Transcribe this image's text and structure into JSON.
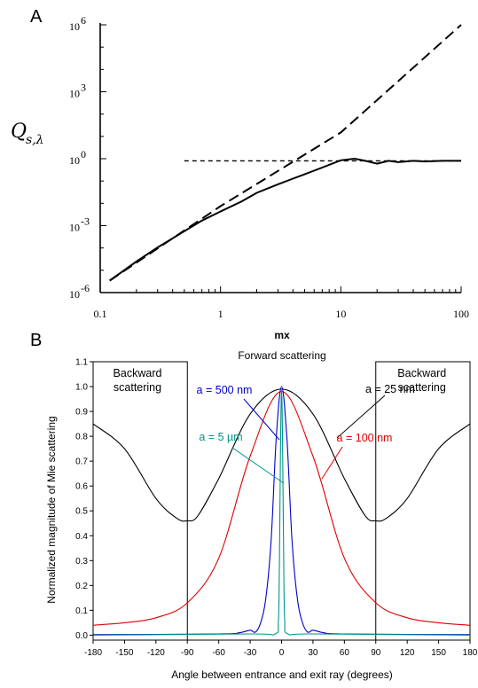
{
  "chart_data": [
    {
      "type": "line",
      "panel_label": "A",
      "ylabel_symbol": "Q",
      "ylabel_subscript": "s,λ",
      "xlabel": "mx",
      "xscale": "log",
      "yscale": "log",
      "xlim": [
        0.1,
        100
      ],
      "ylim": [
        1e-06,
        1000000.0
      ],
      "xtick_labels": [
        "0.1",
        "1",
        "10",
        "100"
      ],
      "ytick_labels": [
        {
          "base": "10",
          "exp": "6"
        },
        {
          "base": "10",
          "exp": "3"
        },
        {
          "base": "10",
          "exp": "0"
        },
        {
          "base": "10",
          "exp": "-3"
        },
        {
          "base": "10",
          "exp": "-6"
        }
      ],
      "series": [
        {
          "style": "solid",
          "color": "#000000",
          "x": [
            0.12,
            0.2,
            0.3,
            0.5,
            0.7,
            1.0,
            1.5,
            2.0,
            3.0,
            4.0,
            5.0,
            7.0,
            10.0,
            13.0,
            16.0,
            20.0,
            25.0,
            30.0,
            40.0,
            50.0,
            70.0,
            100.0
          ],
          "y": [
            3.45e-06,
            2.45e-05,
            0.000105,
            0.000564,
            0.00169,
            0.00433,
            0.0123,
            0.0294,
            0.071,
            0.128,
            0.2,
            0.4,
            0.85,
            1.0,
            0.8,
            0.6,
            0.8,
            0.7,
            0.8,
            0.75,
            0.8,
            0.8
          ]
        },
        {
          "style": "dashed",
          "color": "#000000",
          "x": [
            0.12,
            1.0,
            10.0,
            100.0
          ],
          "y": [
            3.45e-06,
            0.0075,
            15.0,
            1000000.0
          ]
        },
        {
          "style": "dotted",
          "color": "#000000",
          "x": [
            0.5,
            100.0
          ],
          "y": [
            0.8,
            0.8
          ]
        }
      ]
    },
    {
      "type": "line",
      "panel_label": "B",
      "title": "Forward scattering",
      "xlabel": "Angle between entrance and exit ray (degrees)",
      "ylabel": "Normalized magnitude of Mie scattering",
      "xlim": [
        -180,
        180
      ],
      "ylim": [
        -0.02,
        1.1
      ],
      "xtick_labels": [
        "-180",
        "-150",
        "-120",
        "-90",
        "-60",
        "-30",
        "0",
        "30",
        "60",
        "90",
        "120",
        "150",
        "180"
      ],
      "ytick_labels": [
        "0.0",
        "0.1",
        "0.2",
        "0.3",
        "0.4",
        "0.5",
        "0.6",
        "0.7",
        "0.8",
        "0.9",
        "1.0",
        "1.1"
      ],
      "region_labels": [
        {
          "text_lines": [
            "Backward",
            "scattering"
          ],
          "side": "left"
        },
        {
          "text_lines": [
            "Backward",
            "scattering"
          ],
          "side": "right"
        }
      ],
      "region_boundaries": [
        -90,
        90
      ],
      "series": [
        {
          "name": "a = 25 nm",
          "color": "#000000",
          "x": [
            -180,
            -150,
            -120,
            -100,
            -90,
            -80,
            -60,
            -30,
            0,
            30,
            60,
            80,
            90,
            100,
            120,
            150,
            180
          ],
          "y": [
            0.85,
            0.75,
            0.55,
            0.47,
            0.46,
            0.48,
            0.63,
            0.89,
            0.99,
            0.89,
            0.63,
            0.48,
            0.46,
            0.47,
            0.55,
            0.75,
            0.85
          ]
        },
        {
          "name": "a = 100 nm",
          "color": "#e00000",
          "x": [
            -180,
            -150,
            -120,
            -90,
            -60,
            -30,
            0,
            30,
            60,
            90,
            120,
            150,
            180
          ],
          "y": [
            0.04,
            0.05,
            0.07,
            0.13,
            0.31,
            0.72,
            0.98,
            0.72,
            0.31,
            0.13,
            0.07,
            0.05,
            0.04
          ]
        },
        {
          "name": "a = 500 nm",
          "color": "#0000cc",
          "x": [
            -180,
            -60,
            -40,
            -30,
            -25,
            -20,
            -15,
            -10,
            -5,
            0,
            5,
            10,
            15,
            20,
            25,
            30,
            40,
            60,
            180
          ],
          "y": [
            0.002,
            0.005,
            0.01,
            0.02,
            0.012,
            0.05,
            0.15,
            0.38,
            0.8,
            1.0,
            0.8,
            0.38,
            0.15,
            0.05,
            0.012,
            0.02,
            0.01,
            0.005,
            0.002
          ]
        },
        {
          "name": "a = 5 µm",
          "color": "#009688",
          "x": [
            -180,
            -30,
            -6,
            -3,
            -2,
            -1,
            0,
            1,
            2,
            3,
            6,
            30,
            180
          ],
          "y": [
            0.0,
            0.005,
            0.005,
            0.06,
            0.3,
            0.75,
            0.99,
            0.75,
            0.3,
            0.06,
            0.005,
            0.005,
            0.0
          ]
        }
      ]
    }
  ]
}
